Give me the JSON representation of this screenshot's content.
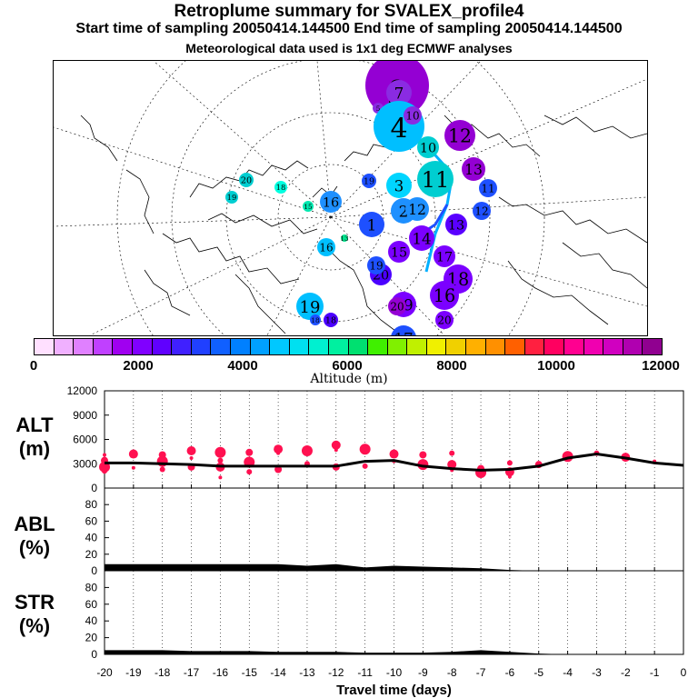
{
  "header": {
    "title": "Retroplume summary for SVALEX_profile4",
    "subtitle": "Start time of sampling 20050414.144500     End time of sampling 20050414.144500",
    "note": "Meteorological data used is 1x1 deg ECMWF analyses"
  },
  "map": {
    "clusters": [
      {
        "label": "9",
        "color": "#9400d3",
        "alt": 1500
      },
      {
        "label": "6",
        "color": "#9400d3",
        "alt": 1800
      },
      {
        "label": "7",
        "color": "#8a2be2",
        "alt": 1700
      },
      {
        "label": "5",
        "color": "#8a2be2",
        "alt": 1600
      },
      {
        "label": "4",
        "color": "#00bfff",
        "alt": 3600
      },
      {
        "label": "10",
        "color": "#8a2be2",
        "alt": 1900
      },
      {
        "label": "10",
        "color": "#00ced1",
        "alt": 3900
      },
      {
        "label": "12",
        "color": "#9400d3",
        "alt": 1700
      },
      {
        "label": "13",
        "color": "#9400d3",
        "alt": 1600
      },
      {
        "label": "11",
        "color": "#00ced1",
        "alt": 4200
      },
      {
        "label": "3",
        "color": "#00d5ff",
        "alt": 3700
      },
      {
        "label": "11",
        "color": "#1e50ff",
        "alt": 3000
      },
      {
        "label": "12",
        "color": "#1e50ff",
        "alt": 3000
      },
      {
        "label": "2",
        "color": "#1e90ff",
        "alt": 3200
      },
      {
        "label": "12",
        "color": "#1e90ff",
        "alt": 3300
      },
      {
        "label": "1",
        "color": "#1e50ff",
        "alt": 3000
      },
      {
        "label": "16",
        "color": "#1e90ff",
        "alt": 3400
      },
      {
        "label": "19",
        "color": "#1e50ff",
        "alt": 2900
      },
      {
        "label": "20",
        "color": "#00ced1",
        "alt": 4000
      },
      {
        "label": "19",
        "color": "#00ced1",
        "alt": 4100
      },
      {
        "label": "18",
        "color": "#00ffe0",
        "alt": 4700
      },
      {
        "label": "15",
        "color": "#00e8b0",
        "alt": 4900
      },
      {
        "label": "13",
        "color": "#00e890",
        "alt": 5200
      },
      {
        "label": "14",
        "color": "#7b00ff",
        "alt": 2400
      },
      {
        "label": "15",
        "color": "#7b00ff",
        "alt": 2300
      },
      {
        "label": "13",
        "color": "#5a00ff",
        "alt": 2200
      },
      {
        "label": "17",
        "color": "#7b00ff",
        "alt": 2300
      },
      {
        "label": "18",
        "color": "#7b00ff",
        "alt": 2300
      },
      {
        "label": "16",
        "color": "#7b00ff",
        "alt": 2300
      },
      {
        "label": "20",
        "color": "#4b00ff",
        "alt": 2100
      },
      {
        "label": "20",
        "color": "#7b00ff",
        "alt": 2400
      },
      {
        "label": "18",
        "color": "#4b00ff",
        "alt": 2000
      },
      {
        "label": "19",
        "color": "#7b00ff",
        "alt": 2300
      },
      {
        "label": "20",
        "color": "#9400d3",
        "alt": 1900
      },
      {
        "label": "19",
        "color": "#00bfff",
        "alt": 3700
      },
      {
        "label": "18",
        "color": "#1e50ff",
        "alt": 3000
      },
      {
        "label": "17",
        "color": "#1e50ff",
        "alt": 2900
      },
      {
        "label": "16",
        "color": "#00bfff",
        "alt": 3600
      },
      {
        "label": "19",
        "color": "#1e50ff",
        "alt": 2900
      }
    ]
  },
  "colorbar": {
    "colors": [
      "#ffe0ff",
      "#f0b0ff",
      "#e080ff",
      "#c040ff",
      "#a000f0",
      "#8000ff",
      "#6000ff",
      "#4020ff",
      "#2040ff",
      "#1060ff",
      "#0080ff",
      "#00a0ff",
      "#00c8ff",
      "#00e0f0",
      "#00f0d0",
      "#00f0a0",
      "#00e070",
      "#40f000",
      "#80f000",
      "#c0f000",
      "#f0f000",
      "#f0d000",
      "#ffb000",
      "#ff9000",
      "#ff6000",
      "#ff2040",
      "#ff0060",
      "#ff0090",
      "#f000b0",
      "#d000c0",
      "#b000b0",
      "#900090"
    ],
    "ticks": [
      "0",
      "2000",
      "4000",
      "6000",
      "8000",
      "10000",
      "12000"
    ],
    "label": "Altitude  (m)"
  },
  "panels": {
    "alt": {
      "label": "ALT",
      "unit": "(m)",
      "ticks": [
        "0",
        "3000",
        "6000",
        "9000",
        "12000"
      ]
    },
    "abl": {
      "label": "ABL",
      "unit": "(%)",
      "ticks": [
        "0",
        "20",
        "40",
        "60",
        "80"
      ]
    },
    "str": {
      "label": "STR",
      "unit": "(%)",
      "ticks": [
        "0",
        "20",
        "40",
        "60",
        "80"
      ]
    }
  },
  "chart_data": [
    {
      "type": "line",
      "title": "ALT",
      "ylabel": "ALT (m)",
      "xlabel": "Travel time (days)",
      "ylim": [
        0,
        12000
      ],
      "x": [
        -20,
        -19,
        -18,
        -17,
        -16,
        -15,
        -14,
        -13,
        -12,
        -11,
        -10,
        -9,
        -8,
        -7,
        -6,
        -5,
        -4,
        -3,
        -2,
        -1,
        0
      ],
      "series": [
        {
          "name": "mean altitude",
          "values": [
            3100,
            3100,
            3000,
            2900,
            2700,
            2700,
            2700,
            2700,
            2700,
            3300,
            3400,
            2700,
            2400,
            2200,
            2300,
            2700,
            3700,
            4200,
            3700,
            3100,
            2800
          ]
        }
      ],
      "scatter": {
        "name": "cluster altitudes",
        "points": [
          {
            "x": -20,
            "y": 4100
          },
          {
            "x": -20,
            "y": 3400
          },
          {
            "x": -20,
            "y": 2600
          },
          {
            "x": -20,
            "y": 2100
          },
          {
            "x": -19,
            "y": 4200
          },
          {
            "x": -19,
            "y": 2500
          },
          {
            "x": -18,
            "y": 4100
          },
          {
            "x": -18,
            "y": 3300
          },
          {
            "x": -18,
            "y": 2300
          },
          {
            "x": -17,
            "y": 4600
          },
          {
            "x": -17,
            "y": 3700
          },
          {
            "x": -17,
            "y": 2600
          },
          {
            "x": -16,
            "y": 4400
          },
          {
            "x": -16,
            "y": 3400
          },
          {
            "x": -16,
            "y": 2600
          },
          {
            "x": -16,
            "y": 1300
          },
          {
            "x": -15,
            "y": 4400
          },
          {
            "x": -15,
            "y": 3200
          },
          {
            "x": -15,
            "y": 2000
          },
          {
            "x": -14,
            "y": 4800
          },
          {
            "x": -14,
            "y": 4300
          },
          {
            "x": -14,
            "y": 2300
          },
          {
            "x": -13,
            "y": 4600
          },
          {
            "x": -13,
            "y": 3000
          },
          {
            "x": -12,
            "y": 5300
          },
          {
            "x": -12,
            "y": 4700
          },
          {
            "x": -12,
            "y": 2600
          },
          {
            "x": -11,
            "y": 4800
          },
          {
            "x": -11,
            "y": 2700
          },
          {
            "x": -10,
            "y": 4200
          },
          {
            "x": -10,
            "y": 3300
          },
          {
            "x": -9,
            "y": 4100
          },
          {
            "x": -9,
            "y": 2900
          },
          {
            "x": -8,
            "y": 4300
          },
          {
            "x": -8,
            "y": 2900
          },
          {
            "x": -8,
            "y": 2200
          },
          {
            "x": -7,
            "y": 2400
          },
          {
            "x": -7,
            "y": 1900
          },
          {
            "x": -6,
            "y": 3100
          },
          {
            "x": -6,
            "y": 2000
          },
          {
            "x": -6,
            "y": 1400
          },
          {
            "x": -5,
            "y": 2900
          },
          {
            "x": -4,
            "y": 3900
          },
          {
            "x": -3,
            "y": 4300
          },
          {
            "x": -2,
            "y": 3800
          },
          {
            "x": -1,
            "y": 3300
          }
        ]
      }
    },
    {
      "type": "area",
      "title": "ABL",
      "ylabel": "ABL (%)",
      "xlabel": "Travel time (days)",
      "ylim": [
        0,
        100
      ],
      "x": [
        -20,
        -19,
        -18,
        -17,
        -16,
        -15,
        -14,
        -13,
        -12,
        -11,
        -10,
        -9,
        -8,
        -7,
        -6,
        -5,
        -4,
        -3,
        -2,
        -1,
        0
      ],
      "series": [
        {
          "name": "ABL fraction",
          "values": [
            8,
            8,
            8,
            8,
            8,
            8,
            8,
            6,
            8,
            4,
            6,
            5,
            4,
            3,
            1,
            0,
            0,
            0,
            0,
            0,
            0
          ]
        }
      ]
    },
    {
      "type": "area",
      "title": "STR",
      "ylabel": "STR (%)",
      "xlabel": "Travel time (days)",
      "ylim": [
        0,
        100
      ],
      "x": [
        -20,
        -19,
        -18,
        -17,
        -16,
        -15,
        -14,
        -13,
        -12,
        -11,
        -10,
        -9,
        -8,
        -7,
        -6,
        -5,
        -4,
        -3,
        -2,
        -1,
        0
      ],
      "series": [
        {
          "name": "stratospheric fraction",
          "values": [
            5,
            5,
            5,
            4,
            4,
            4,
            3,
            3,
            3,
            2,
            2,
            2,
            3,
            5,
            3,
            1,
            0,
            0,
            0,
            0,
            0
          ]
        }
      ]
    }
  ],
  "xaxis": {
    "ticks": [
      "-20",
      "-19",
      "-18",
      "-17",
      "-16",
      "-15",
      "-14",
      "-13",
      "-12",
      "-11",
      "-10",
      "-9",
      "-8",
      "-7",
      "-6",
      "-5",
      "-4",
      "-3",
      "-2",
      "-1",
      "0"
    ],
    "label": "Travel time (days)"
  }
}
